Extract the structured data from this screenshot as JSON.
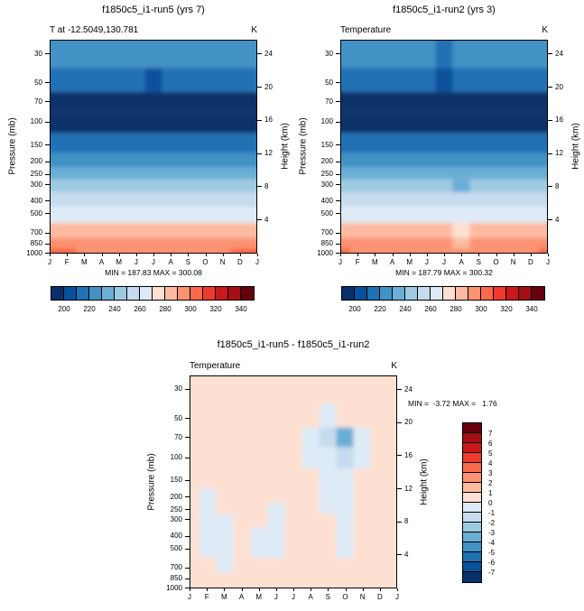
{
  "figure": {
    "background": "#ffffff",
    "pressure_axis_label": "Pressure (mb)",
    "height_axis_label": "Height (km)",
    "pressure_ticks": [
      30,
      50,
      70,
      100,
      150,
      200,
      250,
      300,
      400,
      500,
      700,
      850,
      1000
    ],
    "height_ticks": [
      24,
      20,
      16,
      12,
      8,
      4
    ],
    "palette": [
      "#08306b",
      "#08519c",
      "#2171b5",
      "#4292c6",
      "#6baed6",
      "#9ecae1",
      "#c6dbef",
      "#deebf7",
      "#fee0d2",
      "#fcbba1",
      "#fc9272",
      "#fb6a4a",
      "#ef3b2c",
      "#cb181d",
      "#a50f15",
      "#67000d"
    ]
  },
  "chart_data": [
    {
      "type": "heatmap",
      "title": "f1850c5_i1-run5 (yrs 7)",
      "subtitle": "T at -12.5049,130.781",
      "units": "K",
      "stats": "MIN = 187.83 MAX = 300.08",
      "xlabel": "",
      "ylabel": "Pressure (mb)",
      "y2label": "Height (km)",
      "x": [
        "J",
        "F",
        "M",
        "A",
        "M",
        "J",
        "J",
        "A",
        "S",
        "O",
        "N",
        "D",
        "J"
      ],
      "levels_mb": [
        30,
        50,
        70,
        100,
        150,
        200,
        250,
        300,
        400,
        500,
        700,
        850,
        1000
      ],
      "grid": [
        [
          221,
          221,
          222,
          222,
          221,
          220,
          220,
          220,
          221,
          222,
          222,
          221,
          221
        ],
        [
          212,
          212,
          213,
          213,
          212,
          210,
          209,
          210,
          211,
          213,
          213,
          212,
          212
        ],
        [
          197,
          197,
          198,
          197,
          196,
          194,
          193,
          193,
          195,
          197,
          198,
          197,
          197
        ],
        [
          192,
          191,
          192,
          192,
          191,
          190,
          189,
          189,
          190,
          192,
          193,
          192,
          192
        ],
        [
          213,
          213,
          213,
          212,
          212,
          211,
          211,
          211,
          212,
          213,
          213,
          213,
          213
        ],
        [
          223,
          223,
          223,
          222,
          222,
          221,
          221,
          221,
          222,
          223,
          223,
          223,
          223
        ],
        [
          233,
          233,
          233,
          232,
          232,
          231,
          231,
          231,
          232,
          233,
          233,
          233,
          233
        ],
        [
          242,
          242,
          242,
          241,
          241,
          240,
          240,
          240,
          241,
          242,
          242,
          242,
          242
        ],
        [
          255,
          255,
          255,
          254,
          254,
          253,
          253,
          253,
          254,
          255,
          255,
          255,
          255
        ],
        [
          267,
          267,
          267,
          266,
          266,
          265,
          265,
          265,
          266,
          267,
          267,
          267,
          267
        ],
        [
          282,
          282,
          282,
          281,
          281,
          280,
          280,
          280,
          281,
          282,
          282,
          282,
          282
        ],
        [
          292,
          292,
          292,
          291,
          291,
          290,
          290,
          290,
          291,
          292,
          292,
          292,
          292
        ],
        [
          300,
          300,
          299,
          298,
          297,
          296,
          295,
          296,
          297,
          298,
          299,
          300,
          300
        ]
      ],
      "colorbar": {
        "min": 190,
        "max": 350,
        "step": 10,
        "tick_labels": [
          200,
          220,
          240,
          260,
          280,
          300,
          320,
          340
        ]
      }
    },
    {
      "type": "heatmap",
      "title": "f1850c5_i1-run2 (yrs 3)",
      "subtitle": "Temperature",
      "units": "K",
      "stats": "MIN = 187.79 MAX = 300.32",
      "xlabel": "",
      "ylabel": "Pressure (mb)",
      "y2label": "Height (km)",
      "x": [
        "J",
        "F",
        "M",
        "A",
        "M",
        "J",
        "J",
        "A",
        "S",
        "O",
        "N",
        "D",
        "J"
      ],
      "levels_mb": [
        30,
        50,
        70,
        100,
        150,
        200,
        250,
        300,
        400,
        500,
        700,
        850,
        1000
      ],
      "grid": [
        [
          220,
          221,
          221,
          222,
          221,
          220,
          219,
          220,
          221,
          222,
          222,
          221,
          220
        ],
        [
          211,
          212,
          212,
          213,
          212,
          210,
          209,
          210,
          211,
          213,
          213,
          212,
          211
        ],
        [
          197,
          197,
          197,
          197,
          196,
          194,
          193,
          194,
          196,
          199,
          198,
          197,
          197
        ],
        [
          192,
          191,
          192,
          192,
          191,
          190,
          189,
          189,
          191,
          193,
          193,
          192,
          192
        ],
        [
          213,
          212,
          213,
          212,
          212,
          211,
          211,
          211,
          212,
          213,
          213,
          212,
          213
        ],
        [
          223,
          223,
          222,
          222,
          222,
          221,
          221,
          221,
          222,
          223,
          222,
          223,
          223
        ],
        [
          233,
          233,
          232,
          232,
          232,
          231,
          231,
          231,
          232,
          233,
          233,
          233,
          233
        ],
        [
          242,
          242,
          242,
          241,
          241,
          240,
          240,
          239,
          241,
          242,
          242,
          242,
          242
        ],
        [
          255,
          255,
          255,
          254,
          254,
          253,
          253,
          252,
          254,
          255,
          255,
          255,
          255
        ],
        [
          267,
          267,
          267,
          266,
          266,
          265,
          265,
          264,
          266,
          267,
          267,
          267,
          267
        ],
        [
          282,
          282,
          282,
          281,
          281,
          280,
          280,
          279,
          281,
          282,
          281,
          282,
          282
        ],
        [
          292,
          291,
          292,
          291,
          291,
          290,
          290,
          289,
          291,
          292,
          291,
          292,
          292
        ],
        [
          300,
          299,
          299,
          298,
          297,
          296,
          295,
          295,
          296,
          297,
          298,
          299,
          300
        ]
      ],
      "colorbar": {
        "min": 190,
        "max": 350,
        "step": 10,
        "tick_labels": [
          200,
          220,
          240,
          260,
          280,
          300,
          320,
          340
        ]
      }
    },
    {
      "type": "heatmap",
      "title": "f1850c5_i1-run5 - f1850c5_i1-run2",
      "subtitle": "Temperature",
      "units": "K",
      "stats": "MIN =  -3.72 MAX =   1.76",
      "xlabel": "",
      "ylabel": "Pressure (mb)",
      "y2label": "Height (km)",
      "x": [
        "J",
        "F",
        "M",
        "A",
        "M",
        "J",
        "J",
        "A",
        "S",
        "O",
        "N",
        "D",
        "J"
      ],
      "levels_mb": [
        30,
        50,
        70,
        100,
        150,
        200,
        250,
        300,
        400,
        500,
        700,
        850,
        1000
      ],
      "grid": [
        [
          0.8,
          0.9,
          0.7,
          0.5,
          0.5,
          0.6,
          0.5,
          0.4,
          0.5,
          0.6,
          0.7,
          0.8,
          0.8
        ],
        [
          0.4,
          0.5,
          0.4,
          0.3,
          0.3,
          0.3,
          0.2,
          0.2,
          -0.2,
          0.3,
          0.4,
          0.4,
          0.4
        ],
        [
          0.3,
          0.4,
          0.3,
          0.2,
          0.3,
          0.2,
          0.1,
          -0.5,
          -1.5,
          -3.5,
          -0.5,
          0.3,
          0.3
        ],
        [
          0.2,
          0.3,
          0.2,
          0.2,
          0.2,
          0.1,
          0.1,
          -0.3,
          -0.8,
          -1.2,
          -0.3,
          0.2,
          0.2
        ],
        [
          0.3,
          0.4,
          0.3,
          0.3,
          0.4,
          0.3,
          0.2,
          0.2,
          -0.3,
          -0.5,
          0.3,
          0.4,
          0.3
        ],
        [
          0.2,
          -0.3,
          0.3,
          0.4,
          0.3,
          0.2,
          0.3,
          0.2,
          -0.2,
          -0.3,
          0.4,
          0.3,
          0.2
        ],
        [
          0.1,
          -0.4,
          0.2,
          0.3,
          0.2,
          -0.2,
          0.3,
          0.3,
          -0.2,
          -0.4,
          0.3,
          0.2,
          0.1
        ],
        [
          0.2,
          -0.4,
          -0.2,
          0.3,
          0.2,
          -0.3,
          0.2,
          0.4,
          0.3,
          -0.3,
          0.2,
          0.2,
          0.2
        ],
        [
          0.3,
          -0.3,
          -0.2,
          0.2,
          -0.2,
          -0.3,
          0.2,
          0.5,
          0.4,
          -0.2,
          0.2,
          0.3,
          0.3
        ],
        [
          0.2,
          -0.2,
          -0.3,
          0.2,
          -0.3,
          -0.2,
          0.3,
          0.4,
          0.3,
          -0.2,
          0.3,
          0.3,
          0.2
        ],
        [
          0.3,
          0.2,
          -0.2,
          0.3,
          0.2,
          0.2,
          0.4,
          0.5,
          0.4,
          0.3,
          0.4,
          0.4,
          0.3
        ],
        [
          0.4,
          0.3,
          0.2,
          0.4,
          0.3,
          0.3,
          0.5,
          0.6,
          0.5,
          0.4,
          0.5,
          0.5,
          0.4
        ],
        [
          0.5,
          0.4,
          0.3,
          0.5,
          0.4,
          0.4,
          0.6,
          0.7,
          0.6,
          0.5,
          0.6,
          0.6,
          0.5
        ]
      ],
      "colorbar": {
        "min": -8,
        "max": 8,
        "step": 1,
        "tick_labels": [
          7,
          6,
          5,
          4,
          3,
          2,
          1,
          0,
          -1,
          -2,
          -3,
          -4,
          -5,
          -6,
          -7
        ]
      }
    }
  ]
}
